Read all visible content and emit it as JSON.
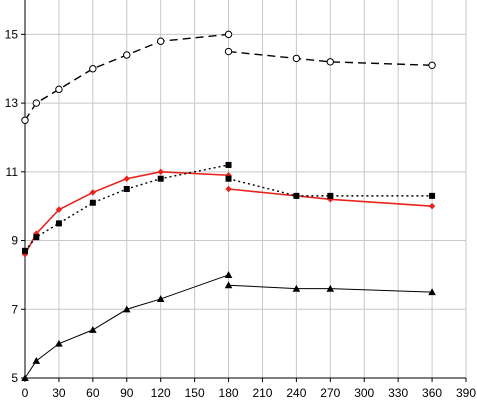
{
  "chart_data": {
    "type": "line",
    "title": "",
    "xlabel": "",
    "ylabel": "",
    "xlim": [
      0,
      390
    ],
    "ylim": [
      5,
      16
    ],
    "x_ticks": [
      0,
      30,
      60,
      90,
      120,
      150,
      180,
      210,
      240,
      270,
      300,
      330,
      360,
      390
    ],
    "y_ticks": [
      5,
      7,
      9,
      11,
      13,
      15
    ],
    "grid": true,
    "series": [
      {
        "style": "dashed-open-circle",
        "color": "#000000",
        "segments": [
          [
            [
              0,
              12.5
            ],
            [
              10,
              13.0
            ],
            [
              30,
              13.4
            ],
            [
              60,
              14.0
            ],
            [
              90,
              14.4
            ],
            [
              120,
              14.8
            ],
            [
              180,
              15.0
            ]
          ],
          [
            [
              180,
              14.5
            ],
            [
              240,
              14.3
            ],
            [
              270,
              14.2
            ],
            [
              360,
              14.1
            ]
          ]
        ]
      },
      {
        "style": "solid-red-diamond",
        "color": "#e8231d",
        "segments": [
          [
            [
              0,
              8.6
            ],
            [
              10,
              9.2
            ],
            [
              30,
              9.9
            ],
            [
              60,
              10.4
            ],
            [
              90,
              10.8
            ],
            [
              120,
              11.0
            ],
            [
              180,
              10.9
            ]
          ],
          [
            [
              180,
              10.5
            ],
            [
              240,
              10.3
            ],
            [
              270,
              10.2
            ],
            [
              360,
              10.0
            ]
          ]
        ]
      },
      {
        "style": "dotted-filled-square",
        "color": "#000000",
        "segments": [
          [
            [
              0,
              8.7
            ],
            [
              10,
              9.1
            ],
            [
              30,
              9.5
            ],
            [
              60,
              10.1
            ],
            [
              90,
              10.5
            ],
            [
              120,
              10.8
            ],
            [
              180,
              11.2
            ]
          ],
          [
            [
              180,
              10.8
            ],
            [
              240,
              10.3
            ],
            [
              270,
              10.3
            ],
            [
              360,
              10.3
            ]
          ]
        ]
      },
      {
        "style": "solid-filled-triangle",
        "color": "#000000",
        "segments": [
          [
            [
              0,
              5.0
            ],
            [
              10,
              5.5
            ],
            [
              30,
              6.0
            ],
            [
              60,
              6.4
            ],
            [
              90,
              7.0
            ],
            [
              120,
              7.3
            ],
            [
              180,
              8.0
            ]
          ],
          [
            [
              180,
              7.7
            ],
            [
              240,
              7.6
            ],
            [
              270,
              7.6
            ],
            [
              360,
              7.5
            ]
          ]
        ]
      }
    ]
  }
}
